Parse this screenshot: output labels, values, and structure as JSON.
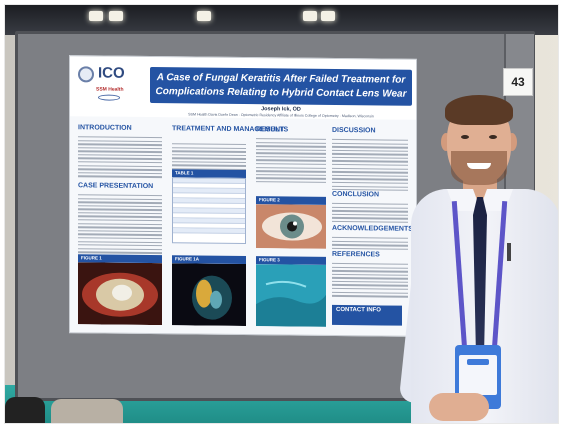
{
  "booth": {
    "number": "43"
  },
  "poster": {
    "logo": {
      "text": "ICO",
      "subtext": "SSM Health"
    },
    "title_line1": "A Case of Fungal Keratitis After Failed Treatment for",
    "title_line2": "Complications Relating to Hybrid Contact Lens Wear",
    "author": "Joseph Ick, OD",
    "affiliation": "SSM Health Davis Duehr Dean · Optometric Residency Affiliate of Illinois College of Optometry · Madison, Wisconsin",
    "sections": {
      "introduction": "INTRODUCTION",
      "case_presentation": "CASE PRESENTATION",
      "treatment": "TREATMENT AND MANAGEMENT",
      "results": "RESULTS",
      "discussion": "DISCUSSION",
      "conclusion": "CONCLUSION",
      "acknowledgements": "ACKNOWLEDGEMENTS",
      "references": "REFERENCES",
      "contact": "CONTACT INFO"
    },
    "figures": {
      "table1": "TABLE 1",
      "figure1": "FIGURE 1",
      "figure1a": "FIGURE 1A",
      "figure2": "FIGURE 2",
      "figure3": "FIGURE 3"
    }
  },
  "colors": {
    "poster_blue": "#2453a3",
    "board_gray": "#7d7f84",
    "floor_teal": "#2fa9a2",
    "lanyard_purple": "#5d55c8"
  }
}
